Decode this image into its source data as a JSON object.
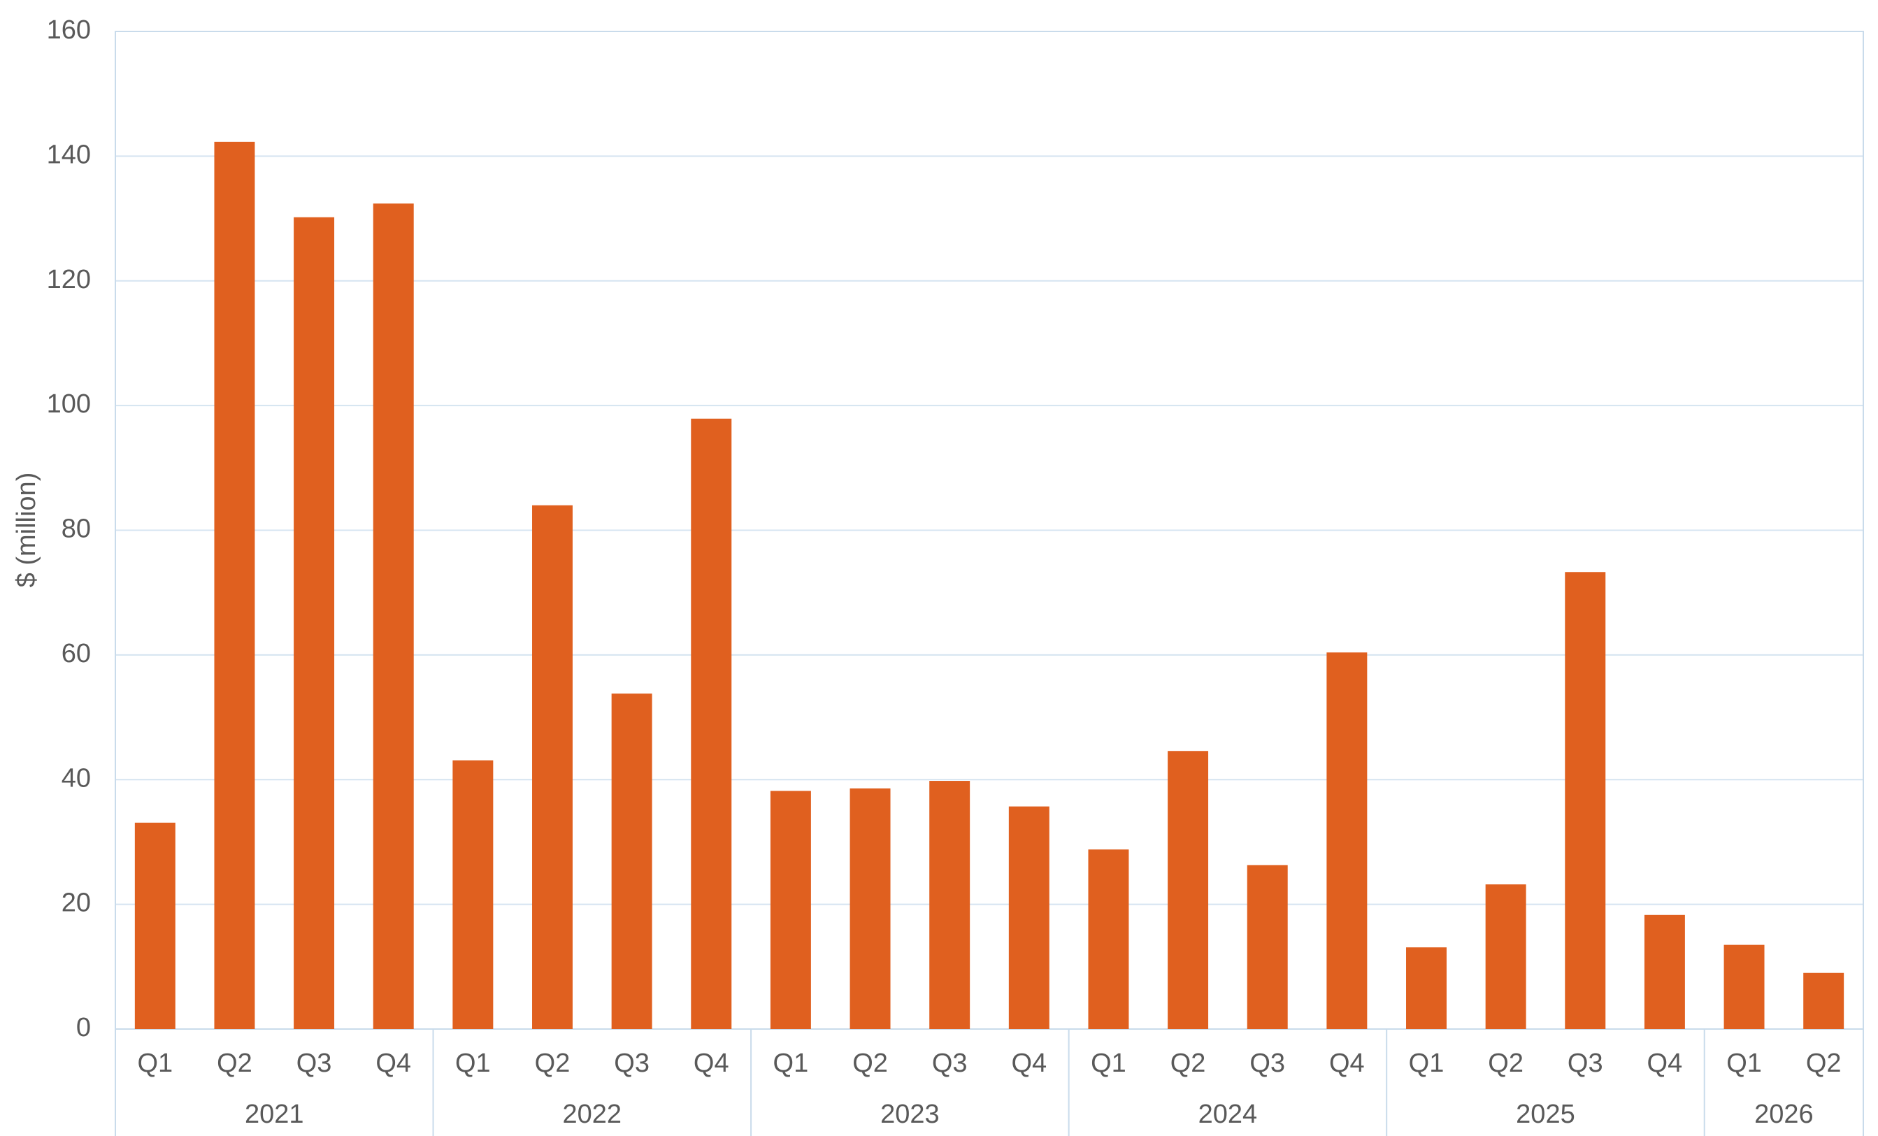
{
  "chart_data": {
    "type": "bar",
    "y_label": "$ (million)",
    "color": "#e0601f",
    "groups": [
      {
        "label": "2021",
        "categories": [
          "Q1",
          "Q2",
          "Q3",
          "Q4"
        ],
        "values": [
          33.1,
          142.3,
          130.2,
          132.4
        ]
      },
      {
        "label": "2022",
        "categories": [
          "Q1",
          "Q2",
          "Q3",
          "Q4"
        ],
        "values": [
          43.1,
          84.0,
          53.8,
          97.9
        ]
      },
      {
        "label": "2023",
        "categories": [
          "Q1",
          "Q2",
          "Q3",
          "Q4"
        ],
        "values": [
          38.2,
          38.6,
          39.8,
          35.7
        ]
      },
      {
        "label": "2024",
        "categories": [
          "Q1",
          "Q2",
          "Q3",
          "Q4"
        ],
        "values": [
          28.8,
          44.6,
          26.3,
          60.4
        ]
      },
      {
        "label": "2025",
        "categories": [
          "Q1",
          "Q2",
          "Q3",
          "Q4"
        ],
        "values": [
          13.1,
          23.2,
          73.3,
          18.3
        ]
      },
      {
        "label": "2026",
        "categories": [
          "Q1",
          "Q2"
        ],
        "values": [
          13.5,
          9.0
        ]
      }
    ],
    "ylim": [
      0,
      160
    ],
    "yticks": [
      0,
      20,
      40,
      60,
      80,
      100,
      120,
      140,
      160
    ],
    "grid": true
  }
}
